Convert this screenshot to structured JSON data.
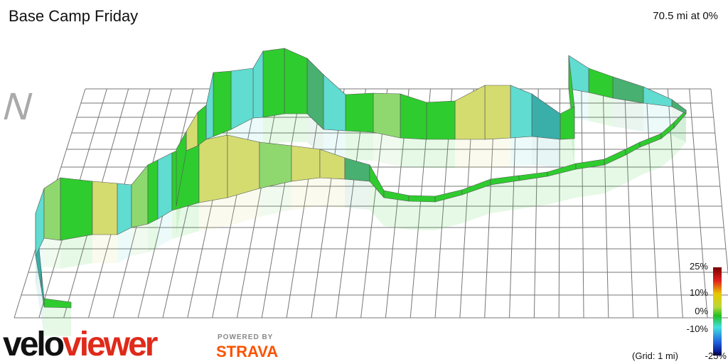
{
  "header": {
    "title": "Base Camp Friday",
    "summary": "70.5 mi at 0%"
  },
  "compass": "N",
  "legend": {
    "labels": [
      "25%",
      "10%",
      "0%",
      "-10%",
      "-25%"
    ],
    "note": "(Grid: 1 mi)"
  },
  "branding": {
    "logo_velo": "velo",
    "logo_viewer": "viewer",
    "powered_by": "POWERED BY",
    "strava": "STRAVA"
  }
}
